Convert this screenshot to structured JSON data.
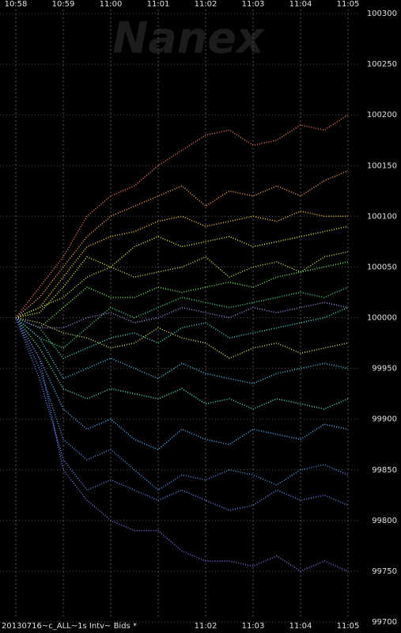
{
  "chart_data": {
    "type": "line",
    "watermark": "Nanex",
    "caption": "20130716~c_ALL~1s Intv~ Bids *",
    "x": [
      658,
      658.5,
      659,
      659.5,
      660,
      660.5,
      661,
      661.5,
      662,
      662.5,
      663,
      663.5,
      664,
      664.5,
      665
    ],
    "xlim": [
      658,
      665
    ],
    "xticks": [
      {
        "value": 658,
        "label": "10:58"
      },
      {
        "value": 659,
        "label": "10:59"
      },
      {
        "value": 660,
        "label": "11:00"
      },
      {
        "value": 661,
        "label": "11:01"
      },
      {
        "value": 662,
        "label": "11:02"
      },
      {
        "value": 663,
        "label": "11:03"
      },
      {
        "value": 664,
        "label": "11:04"
      },
      {
        "value": 665,
        "label": "11:05"
      }
    ],
    "ylim": [
      99700,
      100300
    ],
    "yticks": [
      99700,
      99750,
      99800,
      99850,
      99900,
      99950,
      100000,
      100050,
      100100,
      100150,
      100200,
      100250,
      100300
    ],
    "grid": true,
    "series": [
      {
        "color": "#f07060",
        "values": [
          100000,
          100030,
          100060,
          100100,
          100120,
          100130,
          100150,
          100165,
          100180,
          100185,
          100170,
          100175,
          100190,
          100185,
          100200
        ]
      },
      {
        "color": "#f0a050",
        "values": [
          100000,
          100020,
          100050,
          100080,
          100100,
          100110,
          100120,
          100130,
          100110,
          100125,
          100120,
          100130,
          100120,
          100135,
          100145
        ]
      },
      {
        "color": "#f0c040",
        "values": [
          100000,
          100010,
          100040,
          100070,
          100080,
          100085,
          100095,
          100100,
          100090,
          100095,
          100100,
          100095,
          100105,
          100100,
          100100
        ]
      },
      {
        "color": "#e0e040",
        "values": [
          100000,
          100005,
          100030,
          100060,
          100050,
          100070,
          100080,
          100070,
          100075,
          100080,
          100070,
          100075,
          100080,
          100085,
          100090
        ]
      },
      {
        "color": "#b0e040",
        "values": [
          100000,
          100010,
          100020,
          100040,
          100050,
          100040,
          100045,
          100050,
          100060,
          100040,
          100050,
          100055,
          100045,
          100060,
          100065
        ]
      },
      {
        "color": "#70e060",
        "values": [
          100000,
          99990,
          100010,
          100030,
          100020,
          100020,
          100030,
          100025,
          100030,
          100035,
          100030,
          100040,
          100045,
          100050,
          100055
        ]
      },
      {
        "color": "#40d080",
        "values": [
          100000,
          99980,
          99970,
          99990,
          100010,
          100000,
          100010,
          100020,
          100015,
          100010,
          100015,
          100020,
          100025,
          100020,
          100030
        ]
      },
      {
        "color": "#40d0c0",
        "values": [
          100000,
          99990,
          99960,
          99970,
          99980,
          99985,
          99975,
          99990,
          99995,
          99980,
          99985,
          99990,
          99995,
          100000,
          100010
        ]
      },
      {
        "color": "#d0d060",
        "values": [
          100000,
          99995,
          99985,
          99980,
          99970,
          99975,
          99990,
          99980,
          99975,
          99960,
          99970,
          99975,
          99965,
          99970,
          99975
        ]
      },
      {
        "color": "#40c0e0",
        "values": [
          100000,
          99980,
          99940,
          99950,
          99960,
          99950,
          99940,
          99955,
          99945,
          99940,
          99935,
          99945,
          99950,
          99955,
          99950
        ]
      },
      {
        "color": "#50e0a0",
        "values": [
          100000,
          99970,
          99930,
          99920,
          99930,
          99925,
          99920,
          99930,
          99915,
          99920,
          99910,
          99920,
          99915,
          99910,
          99920
        ]
      },
      {
        "color": "#50b0f0",
        "values": [
          100000,
          99960,
          99910,
          99890,
          99900,
          99880,
          99870,
          99890,
          99880,
          99875,
          99890,
          99885,
          99880,
          99895,
          99890
        ]
      },
      {
        "color": "#5090e0",
        "values": [
          100000,
          99950,
          99880,
          99860,
          99870,
          99850,
          99830,
          99845,
          99840,
          99850,
          99845,
          99835,
          99850,
          99855,
          99845
        ]
      },
      {
        "color": "#6080e0",
        "values": [
          100000,
          99940,
          99860,
          99830,
          99840,
          99830,
          99820,
          99830,
          99820,
          99810,
          99815,
          99830,
          99820,
          99825,
          99815
        ]
      },
      {
        "color": "#7070e0",
        "values": [
          100000,
          99960,
          99850,
          99820,
          99800,
          99790,
          99790,
          99770,
          99760,
          99760,
          99755,
          99765,
          99750,
          99760,
          99750
        ]
      },
      {
        "color": "#a080e0",
        "values": [
          100000,
          99990,
          99990,
          100000,
          100005,
          99995,
          100000,
          100010,
          100005,
          100000,
          100010,
          100005,
          100010,
          100015,
          100010
        ]
      }
    ]
  }
}
